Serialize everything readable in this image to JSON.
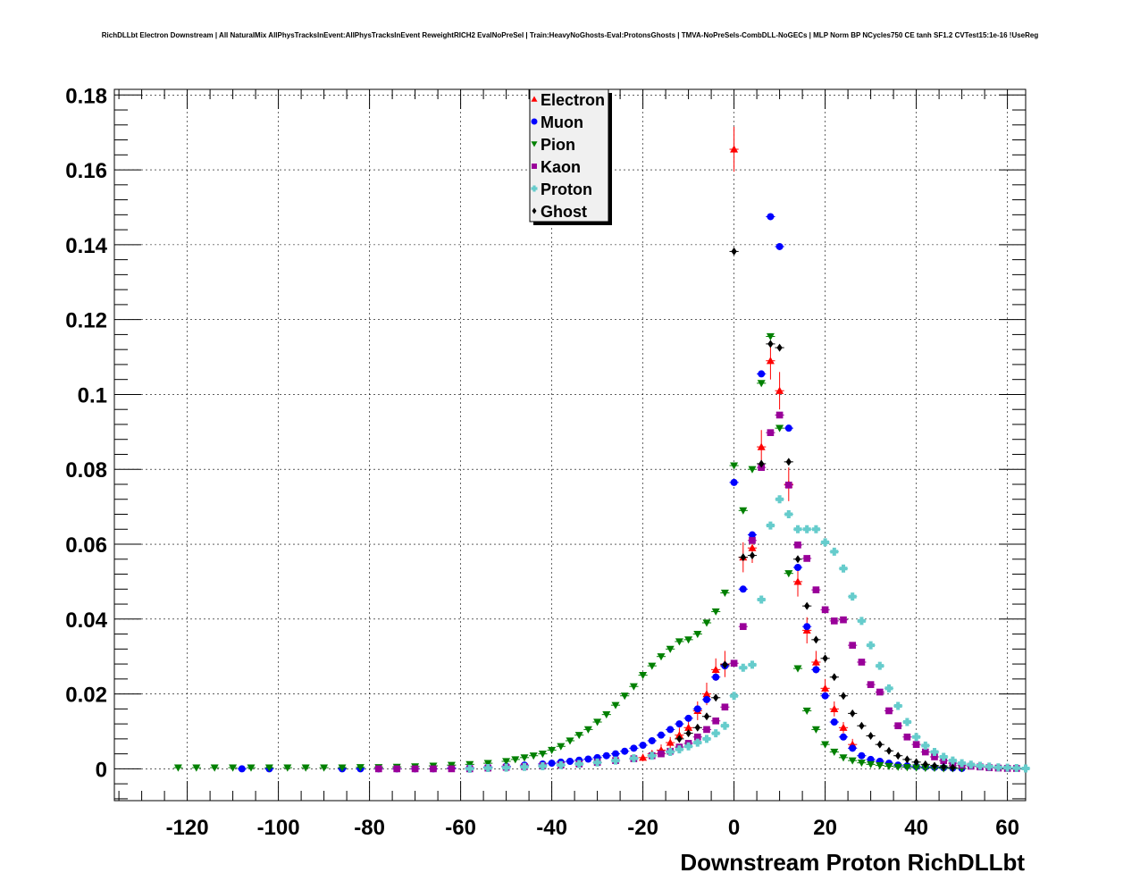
{
  "chart_data": {
    "type": "scatter",
    "title": "RichDLLbt Electron Downstream | All NaturalMix AllPhysTracksInEvent:AllPhysTracksInEvent ReweightRICH2 EvalNoPreSel | Train:HeavyNoGhosts-Eval:ProtonsGhosts | TMVA-NoPreSels-CombDLL-NoGECs | MLP Norm BP NCycles750 CE tanh SF1.2 CVTest15:1e-16 !UseReg",
    "xlabel": "Downstream Proton RichDLLbt",
    "ylabel": "",
    "xlim": [
      -136,
      64
    ],
    "ylim": [
      -0.0085,
      0.1815
    ],
    "grid": true,
    "legend_position": "top-center",
    "xticks": [
      -120,
      -100,
      -80,
      -60,
      -40,
      -20,
      0,
      20,
      40,
      60
    ],
    "xtick_labels": [
      "-120",
      "-100",
      "-80",
      "-60",
      "-40",
      "-20",
      "0",
      "20",
      "40",
      "60"
    ],
    "yticks": [
      0,
      0.02,
      0.04,
      0.06,
      0.08,
      0.1,
      0.12,
      0.14,
      0.16,
      0.18
    ],
    "ytick_labels": [
      "0",
      "0.02",
      "0.04",
      "0.06",
      "0.08",
      "0.1",
      "0.12",
      "0.14",
      "0.16",
      "0.18"
    ],
    "series": [
      {
        "name": "Electron",
        "color": "#ff0000",
        "marker": "triangle-up",
        "x": [
          -20,
          -18,
          -16,
          -14,
          -12,
          -10,
          -8,
          -6,
          -4,
          -2,
          0,
          2,
          4,
          6,
          8,
          10,
          12,
          14,
          16,
          18,
          20,
          22,
          24,
          26
        ],
        "y": [
          0.003,
          0.004,
          0.005,
          0.007,
          0.009,
          0.011,
          0.0155,
          0.02,
          0.0265,
          0.028,
          0.1655,
          0.0565,
          0.059,
          0.086,
          0.109,
          0.101,
          0.076,
          0.05,
          0.037,
          0.0285,
          0.0215,
          0.016,
          0.011,
          0.0065
        ],
        "err": [
          0.001,
          0.001,
          0.0015,
          0.0015,
          0.002,
          0.002,
          0.0025,
          0.003,
          0.003,
          0.0035,
          0.006,
          0.004,
          0.004,
          0.0045,
          0.005,
          0.005,
          0.0045,
          0.004,
          0.0035,
          0.003,
          0.0025,
          0.002,
          0.0015,
          0.0015
        ]
      },
      {
        "name": "Muon",
        "color": "#0000ff",
        "marker": "circle",
        "x": [
          -108,
          -102,
          -86,
          -82,
          -78,
          -74,
          -70,
          -66,
          -62,
          -58,
          -54,
          -50,
          -46,
          -42,
          -40,
          -38,
          -36,
          -34,
          -32,
          -30,
          -28,
          -26,
          -24,
          -22,
          -20,
          -18,
          -16,
          -14,
          -12,
          -10,
          -8,
          -6,
          -4,
          -2,
          0,
          2,
          4,
          6,
          8,
          10,
          12,
          14,
          16,
          18,
          20,
          22,
          24,
          26,
          28,
          30,
          32,
          34,
          36,
          38,
          40,
          42,
          44,
          46,
          48,
          50
        ],
        "y": [
          0,
          0,
          0,
          0,
          0,
          0,
          0,
          0,
          0.0002,
          0.0003,
          0.0005,
          0.0007,
          0.001,
          0.0013,
          0.0015,
          0.0018,
          0.002,
          0.0023,
          0.0026,
          0.003,
          0.0035,
          0.004,
          0.0047,
          0.0055,
          0.0063,
          0.0075,
          0.009,
          0.0105,
          0.012,
          0.0135,
          0.016,
          0.0185,
          0.0245,
          0.0275,
          0.0765,
          0.048,
          0.0625,
          0.1055,
          0.1475,
          0.1395,
          0.091,
          0.0538,
          0.038,
          0.0265,
          0.0195,
          0.0125,
          0.0085,
          0.0055,
          0.0035,
          0.0025,
          0.002,
          0.0015,
          0.001,
          0.0008,
          0.0006,
          0.0005,
          0.0004,
          0.0003,
          0.0002,
          0.0001
        ]
      },
      {
        "name": "Pion",
        "color": "#008000",
        "marker": "triangle-down",
        "x": [
          -122,
          -118,
          -114,
          -110,
          -106,
          -102,
          -98,
          -94,
          -90,
          -86,
          -82,
          -78,
          -74,
          -70,
          -66,
          -62,
          -58,
          -54,
          -50,
          -48,
          -46,
          -44,
          -42,
          -40,
          -38,
          -36,
          -34,
          -32,
          -30,
          -28,
          -26,
          -24,
          -22,
          -20,
          -18,
          -16,
          -14,
          -12,
          -10,
          -8,
          -6,
          -4,
          -2,
          0,
          2,
          4,
          6,
          8,
          10,
          12,
          14,
          16,
          18,
          20,
          22,
          24,
          26,
          28,
          30,
          32,
          34,
          36,
          38,
          40,
          42,
          44,
          46,
          48,
          50
        ],
        "y": [
          0.0003,
          0.0003,
          0.0003,
          0.0003,
          0.0003,
          0.0003,
          0.0003,
          0.0003,
          0.0003,
          0.0003,
          0.0004,
          0.0004,
          0.0005,
          0.0006,
          0.0008,
          0.001,
          0.0012,
          0.0015,
          0.002,
          0.0025,
          0.003,
          0.0035,
          0.004,
          0.005,
          0.006,
          0.0075,
          0.009,
          0.0105,
          0.0125,
          0.0145,
          0.017,
          0.0195,
          0.022,
          0.025,
          0.0275,
          0.03,
          0.032,
          0.034,
          0.0345,
          0.036,
          0.039,
          0.042,
          0.047,
          0.081,
          0.069,
          0.08,
          0.103,
          0.1155,
          0.091,
          0.0522,
          0.0268,
          0.0155,
          0.0105,
          0.0065,
          0.0045,
          0.003,
          0.0022,
          0.0016,
          0.0012,
          0.0009,
          0.0007,
          0.0005,
          0.0004,
          0.0003,
          0.0002,
          0.0002,
          0.0001,
          0.0001,
          0.0001
        ]
      },
      {
        "name": "Kaon",
        "color": "#990099",
        "marker": "square",
        "x": [
          -78,
          -74,
          -70,
          -66,
          -62,
          -58,
          -54,
          -50,
          -46,
          -42,
          -38,
          -34,
          -30,
          -26,
          -22,
          -18,
          -16,
          -14,
          -12,
          -10,
          -8,
          -6,
          -4,
          -2,
          0,
          2,
          4,
          6,
          8,
          10,
          12,
          14,
          16,
          18,
          20,
          22,
          24,
          26,
          28,
          30,
          32,
          34,
          36,
          38,
          40,
          42,
          44,
          46,
          48,
          50,
          52,
          54,
          56,
          58,
          60,
          62
        ],
        "y": [
          0,
          0,
          0,
          0,
          0,
          0,
          0.0002,
          0.0004,
          0.0006,
          0.0008,
          0.001,
          0.0013,
          0.0017,
          0.0022,
          0.0027,
          0.0035,
          0.004,
          0.0047,
          0.0058,
          0.0068,
          0.0085,
          0.0105,
          0.0128,
          0.0165,
          0.0282,
          0.038,
          0.061,
          0.0805,
          0.0898,
          0.0945,
          0.0758,
          0.0598,
          0.0562,
          0.0478,
          0.0425,
          0.0395,
          0.0398,
          0.033,
          0.0285,
          0.0225,
          0.0205,
          0.0155,
          0.0115,
          0.0085,
          0.0065,
          0.0045,
          0.0032,
          0.0022,
          0.0015,
          0.001,
          0.0007,
          0.0005,
          0.0003,
          0.0002,
          0.0001,
          0.0001
        ]
      },
      {
        "name": "Proton",
        "color": "#66cccc",
        "marker": "cross",
        "x": [
          -58,
          -54,
          -50,
          -46,
          -42,
          -38,
          -34,
          -30,
          -26,
          -22,
          -18,
          -14,
          -12,
          -10,
          -8,
          -6,
          -4,
          -2,
          0,
          2,
          4,
          6,
          8,
          10,
          12,
          14,
          16,
          18,
          20,
          22,
          24,
          26,
          28,
          30,
          32,
          34,
          36,
          38,
          40,
          42,
          44,
          46,
          48,
          50,
          52,
          54,
          56,
          58,
          60,
          62,
          64
        ],
        "y": [
          0,
          0.0002,
          0.0003,
          0.0005,
          0.0007,
          0.001,
          0.0013,
          0.0017,
          0.0022,
          0.0028,
          0.0035,
          0.0045,
          0.0052,
          0.006,
          0.007,
          0.008,
          0.0095,
          0.0115,
          0.0195,
          0.027,
          0.0278,
          0.0452,
          0.065,
          0.072,
          0.068,
          0.064,
          0.064,
          0.064,
          0.0605,
          0.058,
          0.0535,
          0.046,
          0.0395,
          0.033,
          0.0275,
          0.0215,
          0.0168,
          0.0125,
          0.0085,
          0.0062,
          0.0045,
          0.0032,
          0.0022,
          0.0015,
          0.0011,
          0.0008,
          0.0006,
          0.0004,
          0.0003,
          0.0002,
          0.0001
        ]
      },
      {
        "name": "Ghost",
        "color": "#000000",
        "marker": "diamond",
        "x": [
          -12,
          -10,
          -8,
          -6,
          -4,
          -2,
          0,
          2,
          4,
          6,
          8,
          10,
          12,
          14,
          16,
          18,
          20,
          22,
          24,
          26,
          28,
          30,
          32,
          34,
          36,
          38,
          40,
          42,
          44,
          46,
          48
        ],
        "y": [
          0.008,
          0.0095,
          0.011,
          0.014,
          0.019,
          0.0278,
          0.1382,
          0.0565,
          0.057,
          0.0815,
          0.1135,
          0.1125,
          0.082,
          0.056,
          0.0435,
          0.0345,
          0.0295,
          0.0245,
          0.0195,
          0.0148,
          0.0115,
          0.0088,
          0.0065,
          0.0048,
          0.0035,
          0.0025,
          0.0018,
          0.0012,
          0.0008,
          0.0005,
          0.0003
        ]
      }
    ]
  }
}
